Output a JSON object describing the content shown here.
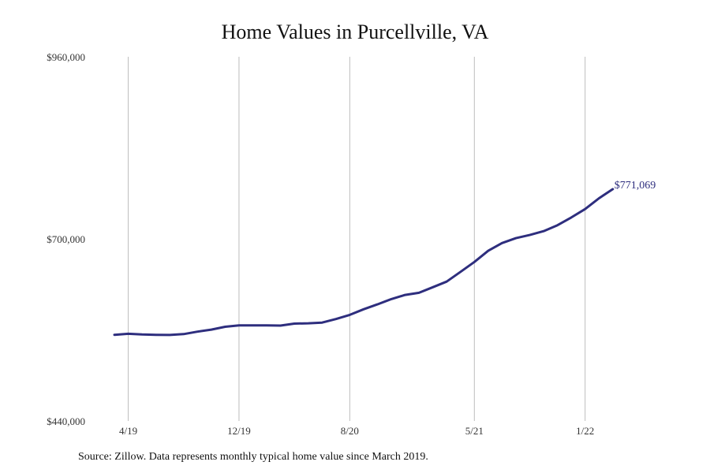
{
  "chart_data": {
    "type": "line",
    "title": "Home Values in Purcellville, VA",
    "source": "Source: Zillow. Data represents monthly typical home value since March 2019.",
    "xlabel": "",
    "ylabel": "",
    "ylim": [
      440000,
      960000
    ],
    "y_ticks": [
      {
        "value": 440000,
        "label": "$440,000"
      },
      {
        "value": 700000,
        "label": "$700,000"
      },
      {
        "value": 960000,
        "label": "$960,000"
      }
    ],
    "x_ticks": [
      {
        "index": 1,
        "label": "4/19"
      },
      {
        "index": 9,
        "label": "12/19"
      },
      {
        "index": 17,
        "label": "8/20"
      },
      {
        "index": 26,
        "label": "5/21"
      },
      {
        "index": 34,
        "label": "1/22"
      }
    ],
    "grid": "vertical",
    "line_color": "#2e2e7e",
    "end_label": "$771,069",
    "series": [
      {
        "x": [
          "3/19",
          "4/19",
          "5/19",
          "6/19",
          "7/19",
          "8/19",
          "9/19",
          "10/19",
          "11/19",
          "12/19",
          "1/20",
          "2/20",
          "3/20",
          "4/20",
          "5/20",
          "6/20",
          "7/20",
          "8/20",
          "9/20",
          "10/20",
          "11/20",
          "12/20",
          "1/21",
          "2/21",
          "3/21",
          "4/21",
          "5/21",
          "6/21",
          "7/21",
          "8/21",
          "9/21",
          "10/21",
          "11/21",
          "12/21",
          "1/22",
          "2/22",
          "3/22"
        ],
        "values": [
          563000,
          564500,
          563500,
          563000,
          562800,
          564000,
          567500,
          570500,
          574500,
          576500,
          576500,
          576500,
          576200,
          579000,
          579500,
          580500,
          585500,
          591500,
          599500,
          606500,
          614000,
          620000,
          623000,
          631000,
          639000,
          653000,
          667000,
          683000,
          694000,
          701000,
          705500,
          711000,
          719500,
          730500,
          742500,
          758000,
          771069
        ]
      }
    ]
  }
}
